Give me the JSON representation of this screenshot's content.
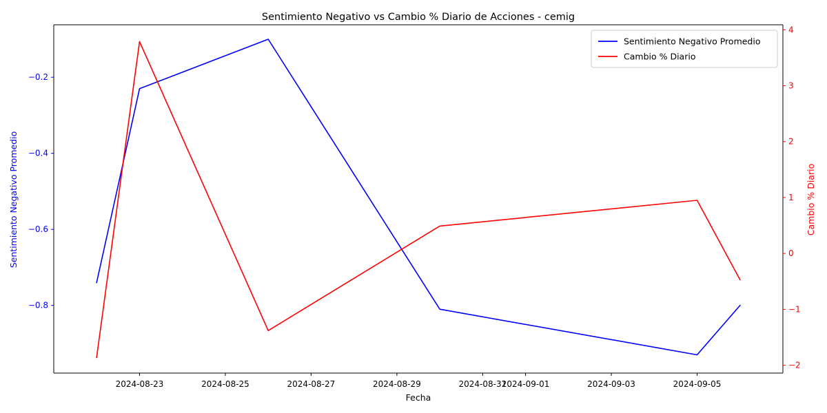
{
  "chart_data": {
    "type": "line",
    "title": "Sentimiento Negativo vs Cambio % Diario de Acciones - cemig",
    "xlabel": "Fecha",
    "x_ticks": [
      "2024-08-23",
      "2024-08-25",
      "2024-08-27",
      "2024-08-29",
      "2024-08-31",
      "2024-09-01",
      "2024-09-03",
      "2024-09-05"
    ],
    "x_range": [
      "2024-08-21",
      "2024-09-07"
    ],
    "legend_position": "top-right",
    "grid": false,
    "left_axis": {
      "label": "Sentimiento Negativo Promedio",
      "color": "#0000ff",
      "ylim": [
        -0.978,
        -0.062
      ],
      "ticks": [
        -0.8,
        -0.6,
        -0.4,
        -0.2
      ],
      "tick_labels": [
        "−0.8",
        "−0.6",
        "−0.4",
        "−0.2"
      ]
    },
    "right_axis": {
      "label": "Cambio % Diario",
      "color": "#ff0000",
      "ylim": [
        -2.14,
        4.09
      ],
      "ticks": [
        -2,
        -1,
        0,
        1,
        2,
        3,
        4
      ],
      "tick_labels": [
        "−2",
        "−1",
        "0",
        "1",
        "2",
        "3",
        "4"
      ]
    },
    "series": [
      {
        "name": "Sentimiento Negativo Promedio",
        "axis": "left",
        "color": "#0000ff",
        "x": [
          "2024-08-22",
          "2024-08-23",
          "2024-08-26",
          "2024-08-30",
          "2024-09-05",
          "2024-09-06"
        ],
        "values": [
          -0.74,
          -0.23,
          -0.1,
          -0.81,
          -0.93,
          -0.8
        ]
      },
      {
        "name": "Cambio % Diario",
        "axis": "right",
        "color": "#ff0000",
        "x": [
          "2024-08-22",
          "2024-08-23",
          "2024-08-26",
          "2024-08-30",
          "2024-09-05",
          "2024-09-06"
        ],
        "values": [
          -1.86,
          3.79,
          -1.38,
          0.49,
          0.95,
          -0.47
        ]
      }
    ]
  }
}
